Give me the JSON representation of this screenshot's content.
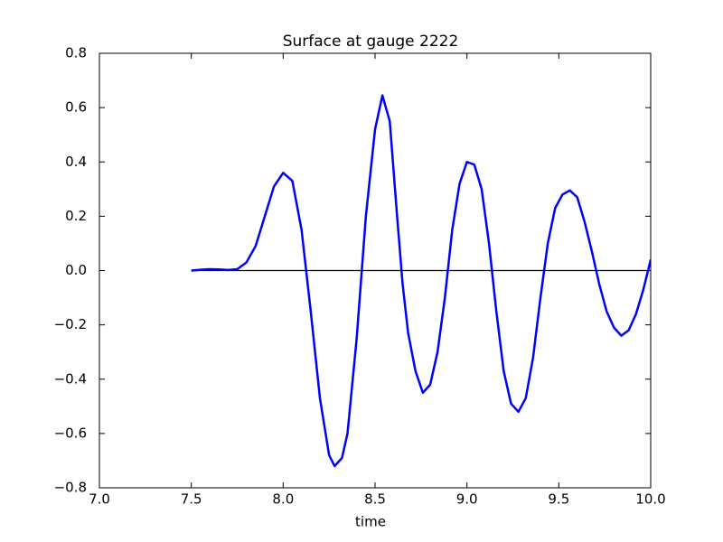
{
  "chart_data": {
    "type": "line",
    "title": "Surface at gauge 2222",
    "x_label": "time",
    "xlim": [
      7.0,
      10.0
    ],
    "xticks": [
      {
        "value": 7.0,
        "label": "7.0"
      },
      7.5,
      {
        "value": 8.0,
        "label": "8.0"
      },
      8.5,
      {
        "value": 9.0,
        "label": "9.0"
      },
      9.5,
      {
        "value": 10.0,
        "label": "10.0"
      }
    ],
    "ylim": [
      -0.8,
      0.8
    ],
    "yticks": [
      {
        "value": -0.8,
        "label": "−0.8"
      },
      {
        "value": -0.6,
        "label": "−0.6"
      },
      {
        "value": -0.4,
        "label": "−0.4"
      },
      {
        "value": -0.2,
        "label": "−0.2"
      },
      {
        "value": 0.0,
        "label": "0.0"
      },
      0.2,
      0.4,
      0.6,
      0.8
    ],
    "series": [
      {
        "color": "#0000ff",
        "x": [
          7.5,
          7.55,
          7.6,
          7.65,
          7.7,
          7.75,
          7.8,
          7.85,
          7.9,
          7.95,
          8.0,
          8.05,
          8.1,
          8.15,
          8.2,
          8.25,
          8.28,
          8.32,
          8.35,
          8.4,
          8.45,
          8.5,
          8.54,
          8.58,
          8.62,
          8.65,
          8.68,
          8.72,
          8.76,
          8.8,
          8.84,
          8.88,
          8.92,
          8.96,
          9.0,
          9.04,
          9.08,
          9.12,
          9.16,
          9.2,
          9.24,
          9.28,
          9.32,
          9.36,
          9.4,
          9.44,
          9.48,
          9.52,
          9.56,
          9.6,
          9.64,
          9.68,
          9.72,
          9.76,
          9.8,
          9.84,
          9.88,
          9.92,
          9.96,
          10.0
        ],
        "values": [
          0,
          0.003,
          0.005,
          0.004,
          0.002,
          0.005,
          0.03,
          0.09,
          0.2,
          0.31,
          0.36,
          0.33,
          0.15,
          -0.15,
          -0.47,
          -0.68,
          -0.72,
          -0.69,
          -0.6,
          -0.25,
          0.2,
          0.52,
          0.645,
          0.55,
          0.2,
          -0.05,
          -0.23,
          -0.37,
          -0.45,
          -0.42,
          -0.3,
          -0.1,
          0.15,
          0.32,
          0.4,
          0.39,
          0.3,
          0.1,
          -0.15,
          -0.37,
          -0.49,
          -0.52,
          -0.47,
          -0.32,
          -0.1,
          0.1,
          0.23,
          0.28,
          0.295,
          0.27,
          0.18,
          0.07,
          -0.05,
          -0.15,
          -0.21,
          -0.24,
          -0.22,
          -0.16,
          -0.07,
          0.04
        ]
      },
      {
        "color": "#000000",
        "x": [
          7.5,
          10.0
        ],
        "values": [
          0,
          0
        ]
      }
    ]
  }
}
